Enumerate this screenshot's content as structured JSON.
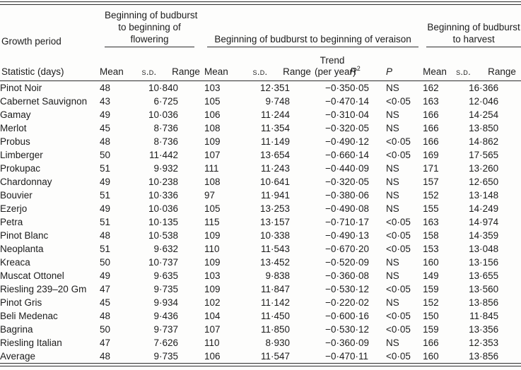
{
  "page": {
    "background": "#fdfdfc",
    "text_color": "#1c1c1c",
    "rule_color": "#2e2e2e"
  },
  "table": {
    "corner": {
      "row_dimension_label": "Growth period",
      "statistic_label": "Statistic (days)"
    },
    "groups": [
      {
        "label": "Beginning of budburst\nto beginning of\nflowering"
      },
      {
        "label": "Beginning of budburst to beginning of veraison"
      },
      {
        "label": "Beginning of budburst\nto harvest"
      }
    ],
    "sub_headers": {
      "mean": "Mean",
      "sd": "s.d.",
      "range": "Range",
      "trend": "Trend\n(per year)",
      "r2_base": "R",
      "r2_sup": "2",
      "p": "P"
    },
    "rows": [
      {
        "variety": "Pinot Noir",
        "bold_row": false,
        "flowering": {
          "mean": "48",
          "sd": "10·8",
          "range": "40"
        },
        "veraison": {
          "mean": "103",
          "sd": "12·3",
          "range": "51",
          "trend": "−0·35",
          "trend_bold": false,
          "r2": "0·05",
          "p": "NS"
        },
        "harvest": {
          "mean": "162",
          "sd": "16·3",
          "range": "66"
        }
      },
      {
        "variety": "Cabernet Sauvignon",
        "bold_row": false,
        "flowering": {
          "mean": "43",
          "sd": "6·7",
          "range": "25"
        },
        "veraison": {
          "mean": "105",
          "sd": "9·7",
          "range": "48",
          "trend": "−0·47",
          "trend_bold": true,
          "r2": "0·14",
          "p": "<0·05"
        },
        "harvest": {
          "mean": "163",
          "sd": "12·0",
          "range": "46"
        }
      },
      {
        "variety": "Gamay",
        "bold_row": false,
        "flowering": {
          "mean": "49",
          "sd": "10·0",
          "range": "36"
        },
        "veraison": {
          "mean": "106",
          "sd": "11·2",
          "range": "44",
          "trend": "−0·31",
          "trend_bold": false,
          "r2": "0·04",
          "p": "NS"
        },
        "harvest": {
          "mean": "166",
          "sd": "14·2",
          "range": "54"
        }
      },
      {
        "variety": "Merlot",
        "bold_row": false,
        "flowering": {
          "mean": "45",
          "sd": "8·7",
          "range": "36"
        },
        "veraison": {
          "mean": "108",
          "sd": "11·3",
          "range": "54",
          "trend": "−0·32",
          "trend_bold": false,
          "r2": "0·05",
          "p": "NS"
        },
        "harvest": {
          "mean": "166",
          "sd": "13·8",
          "range": "50"
        }
      },
      {
        "variety": "Probus",
        "bold_row": false,
        "flowering": {
          "mean": "48",
          "sd": "8·7",
          "range": "36"
        },
        "veraison": {
          "mean": "109",
          "sd": "11·1",
          "range": "49",
          "trend": "−0·49",
          "trend_bold": true,
          "r2": "0·12",
          "p": "<0·05"
        },
        "harvest": {
          "mean": "166",
          "sd": "14·8",
          "range": "62"
        }
      },
      {
        "variety": "Limberger",
        "bold_row": false,
        "flowering": {
          "mean": "50",
          "sd": "11·4",
          "range": "42"
        },
        "veraison": {
          "mean": "107",
          "sd": "13·6",
          "range": "54",
          "trend": "−0·66",
          "trend_bold": true,
          "r2": "0·14",
          "p": "<0·05"
        },
        "harvest": {
          "mean": "169",
          "sd": "17·5",
          "range": "65"
        }
      },
      {
        "variety": "Prokupac",
        "bold_row": false,
        "flowering": {
          "mean": "51",
          "sd": "9·9",
          "range": "32"
        },
        "veraison": {
          "mean": "111",
          "sd": "11·2",
          "range": "43",
          "trend": "−0·44",
          "trend_bold": false,
          "r2": "0·09",
          "p": "NS"
        },
        "harvest": {
          "mean": "171",
          "sd": "13·2",
          "range": "60"
        }
      },
      {
        "variety": "Chardonnay",
        "bold_row": false,
        "flowering": {
          "mean": "49",
          "sd": "10·2",
          "range": "38"
        },
        "veraison": {
          "mean": "108",
          "sd": "10·6",
          "range": "41",
          "trend": "−0·32",
          "trend_bold": false,
          "r2": "0·05",
          "p": "NS"
        },
        "harvest": {
          "mean": "157",
          "sd": "12·6",
          "range": "50"
        }
      },
      {
        "variety": "Bouvier",
        "bold_row": false,
        "flowering": {
          "mean": "51",
          "sd": "10·3",
          "range": "36"
        },
        "veraison": {
          "mean": "97",
          "sd": "11·9",
          "range": "41",
          "trend": "−0·38",
          "trend_bold": false,
          "r2": "0·06",
          "p": "NS"
        },
        "harvest": {
          "mean": "152",
          "sd": "13·1",
          "range": "48"
        }
      },
      {
        "variety": "Ezerjo",
        "bold_row": false,
        "flowering": {
          "mean": "49",
          "sd": "10·0",
          "range": "36"
        },
        "veraison": {
          "mean": "105",
          "sd": "13·2",
          "range": "53",
          "trend": "−0·49",
          "trend_bold": false,
          "r2": "0·08",
          "p": "NS"
        },
        "harvest": {
          "mean": "155",
          "sd": "14·2",
          "range": "49"
        }
      },
      {
        "variety": "Petra",
        "bold_row": false,
        "flowering": {
          "mean": "51",
          "sd": "10·1",
          "range": "35"
        },
        "veraison": {
          "mean": "115",
          "sd": "13·1",
          "range": "57",
          "trend": "−0·71",
          "trend_bold": true,
          "r2": "0·17",
          "p": "<0·05"
        },
        "harvest": {
          "mean": "163",
          "sd": "14·9",
          "range": "74"
        }
      },
      {
        "variety": "Pinot Blanc",
        "bold_row": false,
        "flowering": {
          "mean": "48",
          "sd": "10·5",
          "range": "38"
        },
        "veraison": {
          "mean": "109",
          "sd": "10·3",
          "range": "38",
          "trend": "−0·49",
          "trend_bold": true,
          "r2": "0·13",
          "p": "<0·05"
        },
        "harvest": {
          "mean": "158",
          "sd": "14·3",
          "range": "59"
        }
      },
      {
        "variety": "Neoplanta",
        "bold_row": false,
        "flowering": {
          "mean": "51",
          "sd": "9·6",
          "range": "32"
        },
        "veraison": {
          "mean": "110",
          "sd": "11·5",
          "range": "43",
          "trend": "−0·67",
          "trend_bold": true,
          "r2": "0·20",
          "p": "<0·05"
        },
        "harvest": {
          "mean": "153",
          "sd": "13·0",
          "range": "48"
        }
      },
      {
        "variety": "Kreaca",
        "bold_row": false,
        "flowering": {
          "mean": "50",
          "sd": "10·7",
          "range": "37"
        },
        "veraison": {
          "mean": "109",
          "sd": "13·4",
          "range": "52",
          "trend": "−0·52",
          "trend_bold": false,
          "r2": "0·09",
          "p": "NS"
        },
        "harvest": {
          "mean": "160",
          "sd": "13·1",
          "range": "56"
        }
      },
      {
        "variety": "Muscat Ottonel",
        "bold_row": false,
        "flowering": {
          "mean": "49",
          "sd": "9·6",
          "range": "35"
        },
        "veraison": {
          "mean": "103",
          "sd": "9·8",
          "range": "38",
          "trend": "−0·36",
          "trend_bold": false,
          "r2": "0·08",
          "p": "NS"
        },
        "harvest": {
          "mean": "149",
          "sd": "13·6",
          "range": "55"
        }
      },
      {
        "variety": "Riesling 239–20 Gm",
        "bold_row": false,
        "flowering": {
          "mean": "47",
          "sd": "9·7",
          "range": "35"
        },
        "veraison": {
          "mean": "109",
          "sd": "11·8",
          "range": "47",
          "trend": "−0·53",
          "trend_bold": true,
          "r2": "0·12",
          "p": "<0·05"
        },
        "harvest": {
          "mean": "159",
          "sd": "13·5",
          "range": "60"
        }
      },
      {
        "variety": "Pinot Gris",
        "bold_row": false,
        "flowering": {
          "mean": "45",
          "sd": "9·9",
          "range": "34"
        },
        "veraison": {
          "mean": "102",
          "sd": "11·1",
          "range": "42",
          "trend": "−0·22",
          "trend_bold": false,
          "r2": "0·02",
          "p": "NS"
        },
        "harvest": {
          "mean": "152",
          "sd": "13·8",
          "range": "56"
        }
      },
      {
        "variety": "Beli Medenac",
        "bold_row": false,
        "flowering": {
          "mean": "48",
          "sd": "9·4",
          "range": "36"
        },
        "veraison": {
          "mean": "104",
          "sd": "11·4",
          "range": "50",
          "trend": "−0·60",
          "trend_bold": true,
          "r2": "0·16",
          "p": "<0·05"
        },
        "harvest": {
          "mean": "150",
          "sd": "11·8",
          "range": "45"
        }
      },
      {
        "variety": "Bagrina",
        "bold_row": false,
        "flowering": {
          "mean": "50",
          "sd": "9·7",
          "range": "37"
        },
        "veraison": {
          "mean": "107",
          "sd": "11·8",
          "range": "50",
          "trend": "−0·53",
          "trend_bold": true,
          "r2": "0·12",
          "p": "<0·05"
        },
        "harvest": {
          "mean": "159",
          "sd": "13·3",
          "range": "56"
        }
      },
      {
        "variety": "Riesling Italian",
        "bold_row": false,
        "flowering": {
          "mean": "47",
          "sd": "7·6",
          "range": "26"
        },
        "veraison": {
          "mean": "110",
          "sd": "8·9",
          "range": "30",
          "trend": "−0·36",
          "trend_bold": false,
          "r2": "0·09",
          "p": "NS"
        },
        "harvest": {
          "mean": "166",
          "sd": "12·3",
          "range": "53"
        }
      },
      {
        "variety": "Average",
        "bold_row": true,
        "flowering": {
          "mean": "48",
          "sd": "9·7",
          "range": "35"
        },
        "veraison": {
          "mean": "106",
          "sd": "11·5",
          "range": "47",
          "trend": "−0·47",
          "trend_bold": true,
          "r2": "0·11",
          "p": "<0·05"
        },
        "harvest": {
          "mean": "160",
          "sd": "13·8",
          "range": "56"
        }
      }
    ]
  }
}
